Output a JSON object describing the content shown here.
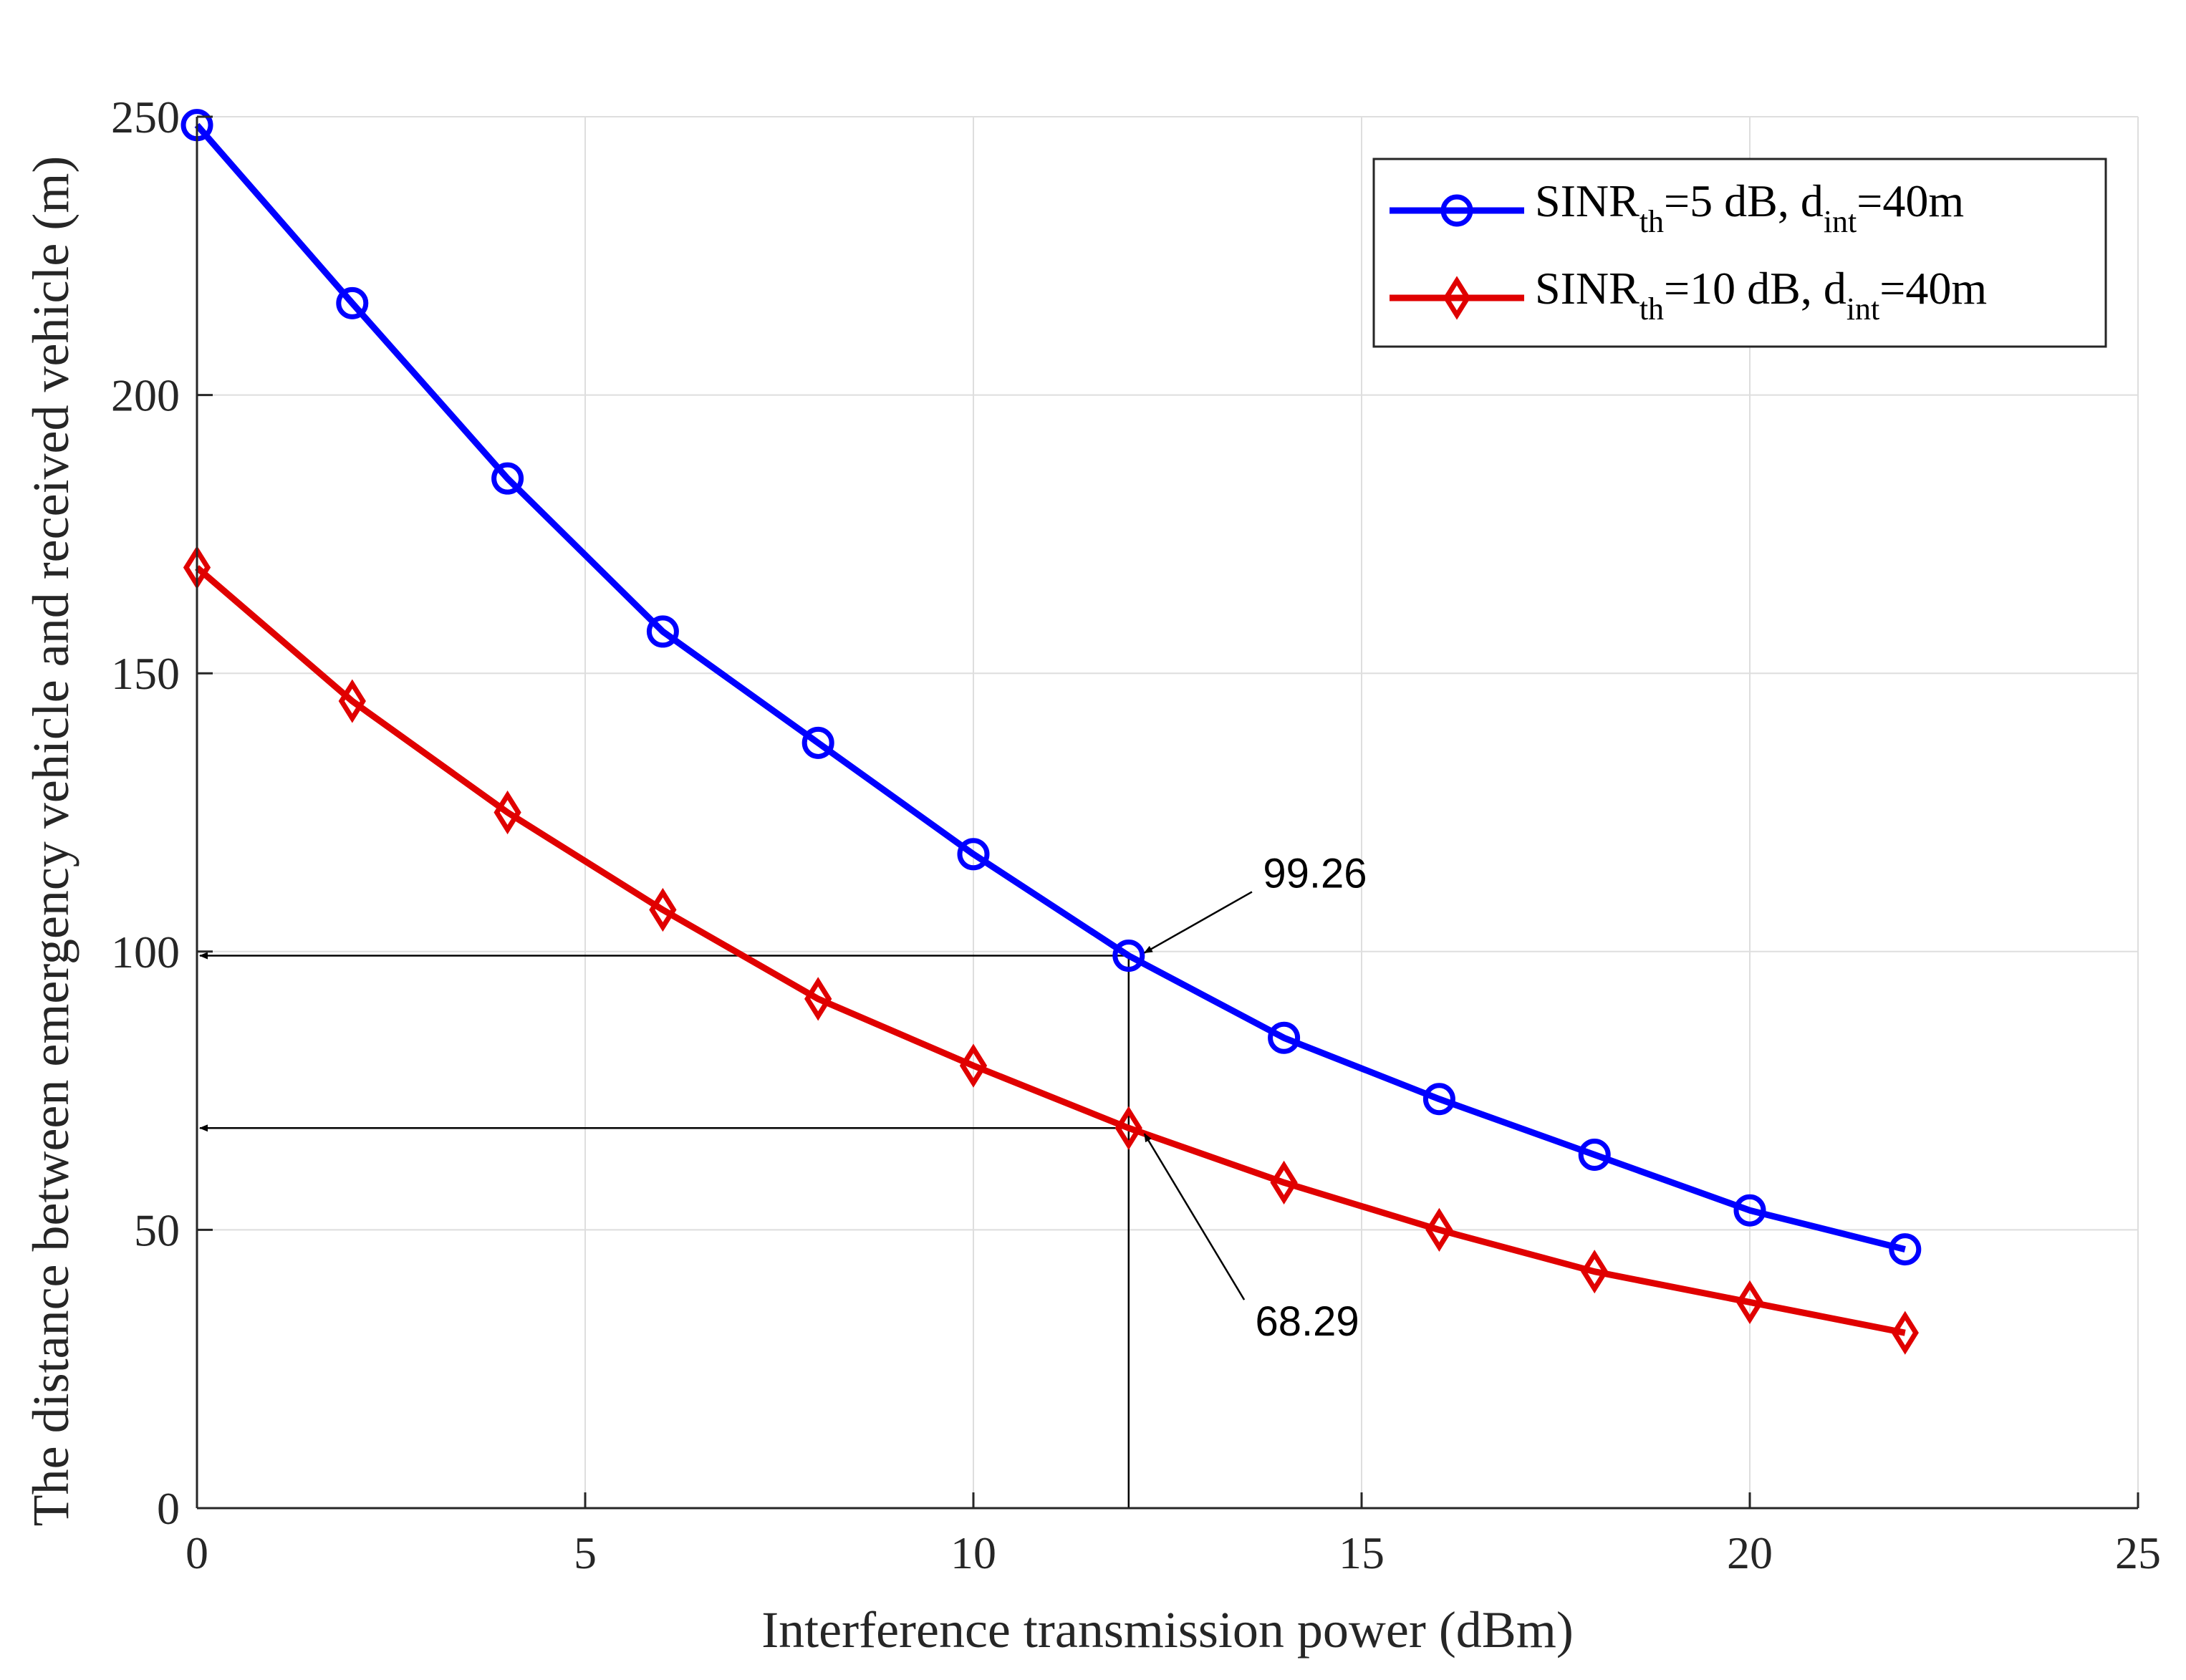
{
  "chart_data": {
    "type": "line",
    "title": "",
    "xlabel": "Interference transmission power (dBm)",
    "ylabel": "The distance between emergency vehicle and received vehicle (m)",
    "xlim": [
      0,
      25
    ],
    "ylim": [
      0,
      250
    ],
    "xticks": [
      0,
      5,
      10,
      15,
      20,
      25
    ],
    "yticks": [
      0,
      50,
      100,
      150,
      200,
      250
    ],
    "xtick_labels": [
      "0",
      "5",
      "10",
      "15",
      "20",
      "25"
    ],
    "ytick_labels": [
      "0",
      "50",
      "100",
      "150",
      "200",
      "250"
    ],
    "grid": true,
    "legend_position": "top-right",
    "x": [
      0,
      2,
      4,
      6,
      8,
      10,
      12,
      14,
      16,
      18,
      20,
      22
    ],
    "series": [
      {
        "name": "SINR_th=5 dB, d_int=40m",
        "legend": {
          "base": "SINR",
          "sub1": "th",
          "mid": "=5 dB, d",
          "sub2": "int",
          "tail": "=40m"
        },
        "color": "#0000ff",
        "marker": "circle",
        "values": [
          248.5,
          216.5,
          185,
          157.5,
          137.5,
          117.5,
          99.26,
          84.5,
          73.5,
          63.5,
          53.5,
          46.5
        ]
      },
      {
        "name": "SINR_th=10 dB, d_int=40m",
        "legend": {
          "base": "SINR",
          "sub1": "th",
          "mid": "=10 dB, d",
          "sub2": "int",
          "tail": "=40m"
        },
        "color": "#e00000",
        "marker": "diamond",
        "values": [
          169,
          145,
          125,
          107.5,
          91.5,
          79.5,
          68.29,
          58.5,
          50,
          42.5,
          37,
          31.5
        ]
      }
    ],
    "annotations": [
      {
        "label": "99.26",
        "x": 12,
        "y": 99.26,
        "text_x": 14.4,
        "text_y": 111.5
      },
      {
        "label": "68.29",
        "x": 12,
        "y": 68.29,
        "text_x": 14.3,
        "text_y": 31
      }
    ],
    "reference_lines": {
      "vertical_x": 12,
      "horizontal_y": [
        99.26,
        68.29
      ]
    }
  }
}
